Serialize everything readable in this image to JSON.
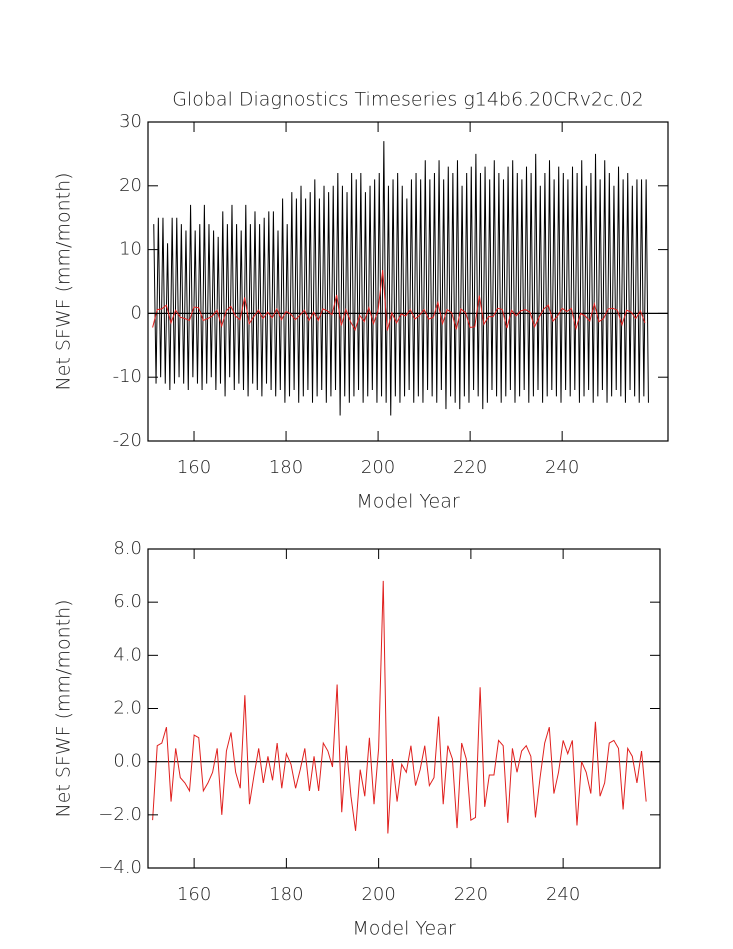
{
  "chart_data": [
    {
      "type": "line",
      "title": "Global Diagnostics Timeseries g14b6.20CRv2c.02",
      "x_label": "Model Year",
      "y_label": "Net SFWF (mm/month)",
      "xlim": [
        150,
        263
      ],
      "xticks": [
        160,
        180,
        200,
        220,
        240
      ],
      "ylim": [
        -20,
        30
      ],
      "yticks": [
        -20,
        -10,
        0,
        10,
        20,
        30
      ],
      "zero_line": true,
      "x": [
        151,
        152,
        153,
        154,
        155,
        156,
        157,
        158,
        159,
        160,
        161,
        162,
        163,
        164,
        165,
        166,
        167,
        168,
        169,
        170,
        171,
        172,
        173,
        174,
        175,
        176,
        177,
        178,
        179,
        180,
        181,
        182,
        183,
        184,
        185,
        186,
        187,
        188,
        189,
        190,
        191,
        192,
        193,
        194,
        195,
        196,
        197,
        198,
        199,
        200,
        201,
        202,
        203,
        204,
        205,
        206,
        207,
        208,
        209,
        210,
        211,
        212,
        213,
        214,
        215,
        216,
        217,
        218,
        219,
        220,
        221,
        222,
        223,
        224,
        225,
        226,
        227,
        228,
        229,
        230,
        231,
        232,
        233,
        234,
        235,
        236,
        237,
        238,
        239,
        240,
        241,
        242,
        243,
        244,
        245,
        246,
        247,
        248,
        249,
        250,
        251,
        252,
        253,
        254,
        255,
        256,
        257,
        258
      ],
      "series": [
        {
          "color": "#000000",
          "x": [
            151.25,
            151.75,
            152.25,
            152.75,
            153.25,
            153.75,
            154.25,
            154.75,
            155.25,
            155.75,
            156.25,
            156.75,
            157.25,
            157.75,
            158.25,
            158.75,
            159.25,
            159.75,
            160.25,
            160.75,
            161.25,
            161.75,
            162.25,
            162.75,
            163.25,
            163.75,
            164.25,
            164.75,
            165.25,
            165.75,
            166.25,
            166.75,
            167.25,
            167.75,
            168.25,
            168.75,
            169.25,
            169.75,
            170.25,
            170.75,
            171.25,
            171.75,
            172.25,
            172.75,
            173.25,
            173.75,
            174.25,
            174.75,
            175.25,
            175.75,
            176.25,
            176.75,
            177.25,
            177.75,
            178.25,
            178.75,
            179.25,
            179.75,
            180.25,
            180.75,
            181.25,
            181.75,
            182.25,
            182.75,
            183.25,
            183.75,
            184.25,
            184.75,
            185.25,
            185.75,
            186.25,
            186.75,
            187.25,
            187.75,
            188.25,
            188.75,
            189.25,
            189.75,
            190.25,
            190.75,
            191.25,
            191.75,
            192.25,
            192.75,
            193.25,
            193.75,
            194.25,
            194.75,
            195.25,
            195.75,
            196.25,
            196.75,
            197.25,
            197.75,
            198.25,
            198.75,
            199.25,
            199.75,
            200.25,
            200.75,
            201.25,
            201.75,
            202.25,
            202.75,
            203.25,
            203.75,
            204.25,
            204.75,
            205.25,
            205.75,
            206.25,
            206.75,
            207.25,
            207.75,
            208.25,
            208.75,
            209.25,
            209.75,
            210.25,
            210.75,
            211.25,
            211.75,
            212.25,
            212.75,
            213.25,
            213.75,
            214.25,
            214.75,
            215.25,
            215.75,
            216.25,
            216.75,
            217.25,
            217.75,
            218.25,
            218.75,
            219.25,
            219.75,
            220.25,
            220.75,
            221.25,
            221.75,
            222.25,
            222.75,
            223.25,
            223.75,
            224.25,
            224.75,
            225.25,
            225.75,
            226.25,
            226.75,
            227.25,
            227.75,
            228.25,
            228.75,
            229.25,
            229.75,
            230.25,
            230.75,
            231.25,
            231.75,
            232.25,
            232.75,
            233.25,
            233.75,
            234.25,
            234.75,
            235.25,
            235.75,
            236.25,
            236.75,
            237.25,
            237.75,
            238.25,
            238.75,
            239.25,
            239.75,
            240.25,
            240.75,
            241.25,
            241.75,
            242.25,
            242.75,
            243.25,
            243.75,
            244.25,
            244.75,
            245.25,
            245.75,
            246.25,
            246.75,
            247.25,
            247.75,
            248.25,
            248.75,
            249.25,
            249.75,
            250.25,
            250.75,
            251.25,
            251.75,
            252.25,
            252.75,
            253.25,
            253.75,
            254.25,
            254.75,
            255.25,
            255.75,
            256.25,
            256.75,
            257.25,
            257.75,
            258.25,
            258.75
          ],
          "values": [
            14,
            -11,
            15,
            -10,
            15,
            -11,
            11,
            -12,
            15,
            -11,
            15,
            -10,
            14,
            -11,
            13,
            -12,
            17,
            -10,
            13,
            -11,
            14,
            -12,
            17,
            -11,
            14,
            -10,
            13,
            -12,
            12,
            -11,
            16,
            -13,
            14,
            -10,
            17,
            -12,
            14,
            -11,
            13,
            -12,
            17,
            -13,
            14,
            -11,
            16,
            -12,
            14,
            -13,
            15,
            -11,
            16,
            -12,
            16,
            -13,
            13,
            -12,
            18,
            -14,
            14,
            -13,
            19,
            -12,
            18,
            -14,
            20,
            -13,
            18,
            -12,
            19,
            -14,
            21,
            -13,
            18,
            -12,
            20,
            -14,
            19,
            -13,
            20,
            -12,
            22,
            -16,
            20,
            -13,
            19,
            -14,
            22,
            -13,
            21,
            -12,
            22,
            -14,
            19,
            -13,
            20,
            -12,
            21,
            -14,
            22,
            -13,
            27,
            -14,
            20,
            -16,
            21,
            -13,
            22,
            -14,
            20,
            -13,
            18,
            -12,
            21,
            -14,
            22,
            -13,
            21,
            -14,
            24,
            -12,
            21,
            -13,
            22,
            -14,
            24,
            -12,
            21,
            -15,
            23,
            -13,
            22,
            -14,
            24,
            -15,
            20,
            -13,
            22,
            -14,
            23,
            -12,
            25,
            -13,
            22,
            -15,
            23,
            -14,
            21,
            -12,
            24,
            -13,
            22,
            -14,
            21,
            -13,
            23,
            -12,
            24,
            -14,
            22,
            -13,
            21,
            -12,
            23,
            -14,
            22,
            -13,
            25,
            -12,
            20,
            -14,
            22,
            -13,
            24,
            -12,
            21,
            -13,
            23,
            -14,
            22,
            -12,
            21,
            -13,
            23,
            -12,
            22,
            -14,
            24,
            -13,
            20,
            -12,
            22,
            -14,
            25,
            -13,
            21,
            -12,
            24,
            -14,
            22,
            -13,
            20,
            -12,
            23,
            -13,
            21,
            -14,
            22,
            -12,
            20,
            -13,
            21,
            -14,
            21,
            -13,
            21,
            -14
          ]
        },
        {
          "color": "#e0201e",
          "values": [
            -2.2,
            0.6,
            0.7,
            1.3,
            -1.5,
            0.5,
            -0.6,
            -0.8,
            -1.1,
            1.0,
            0.9,
            -1.1,
            -0.8,
            -0.4,
            0.5,
            -2.0,
            0.4,
            1.1,
            -0.4,
            -1.0,
            2.5,
            -1.6,
            -0.5,
            0.5,
            -0.8,
            0.2,
            -0.7,
            0.7,
            -1.0,
            0.3,
            -0.1,
            -1.0,
            -0.3,
            0.5,
            -1.1,
            0.2,
            -1.1,
            0.7,
            0.4,
            -0.2,
            2.9,
            -1.9,
            0.6,
            -1.3,
            -2.6,
            -0.3,
            -1.3,
            0.9,
            -1.6,
            0.5,
            6.8,
            -2.7,
            0.1,
            -1.5,
            -0.1,
            -0.4,
            0.6,
            -0.9,
            -0.3,
            0.6,
            -0.9,
            -0.6,
            1.7,
            -1.6,
            0.6,
            0.1,
            -2.5,
            0.7,
            0.1,
            -2.2,
            -2.1,
            2.8,
            -1.7,
            -0.5,
            -0.5,
            0.8,
            0.6,
            -2.3,
            0.5,
            -0.4,
            0.4,
            0.6,
            0.2,
            -2.1,
            -0.6,
            0.7,
            1.3,
            -1.2,
            -0.4,
            0.8,
            0.3,
            0.8,
            -2.4,
            0.0,
            -0.4,
            -1.2,
            1.5,
            -1.3,
            -0.8,
            0.7,
            0.8,
            0.5,
            -1.8,
            0.5,
            0.2,
            -0.8,
            0.4,
            -1.5
          ]
        }
      ]
    },
    {
      "type": "line",
      "x_label": "Model Year",
      "y_label": "Net SFWF (mm/month)",
      "xlim": [
        150,
        261
      ],
      "xticks": [
        160,
        180,
        200,
        220,
        240
      ],
      "ylim": [
        -4,
        8
      ],
      "yticks": [
        {
          "value": -4,
          "label": "−4.0"
        },
        {
          "value": -2,
          "label": "−2.0"
        },
        {
          "value": 0,
          "label": "0.0"
        },
        {
          "value": 2,
          "label": "2.0"
        },
        {
          "value": 4,
          "label": "4.0"
        },
        {
          "value": 6,
          "label": "6.0"
        },
        {
          "value": 8,
          "label": "8.0"
        }
      ],
      "zero_line": true,
      "x": [
        151,
        152,
        153,
        154,
        155,
        156,
        157,
        158,
        159,
        160,
        161,
        162,
        163,
        164,
        165,
        166,
        167,
        168,
        169,
        170,
        171,
        172,
        173,
        174,
        175,
        176,
        177,
        178,
        179,
        180,
        181,
        182,
        183,
        184,
        185,
        186,
        187,
        188,
        189,
        190,
        191,
        192,
        193,
        194,
        195,
        196,
        197,
        198,
        199,
        200,
        201,
        202,
        203,
        204,
        205,
        206,
        207,
        208,
        209,
        210,
        211,
        212,
        213,
        214,
        215,
        216,
        217,
        218,
        219,
        220,
        221,
        222,
        223,
        224,
        225,
        226,
        227,
        228,
        229,
        230,
        231,
        232,
        233,
        234,
        235,
        236,
        237,
        238,
        239,
        240,
        241,
        242,
        243,
        244,
        245,
        246,
        247,
        248,
        249,
        250,
        251,
        252,
        253,
        254,
        255,
        256,
        257,
        258
      ],
      "series": [
        {
          "color": "#e0201e",
          "values": [
            -2.2,
            0.6,
            0.7,
            1.3,
            -1.5,
            0.5,
            -0.6,
            -0.8,
            -1.1,
            1.0,
            0.9,
            -1.1,
            -0.8,
            -0.4,
            0.5,
            -2.0,
            0.4,
            1.1,
            -0.4,
            -1.0,
            2.5,
            -1.6,
            -0.5,
            0.5,
            -0.8,
            0.2,
            -0.7,
            0.7,
            -1.0,
            0.3,
            -0.1,
            -1.0,
            -0.3,
            0.5,
            -1.1,
            0.2,
            -1.1,
            0.7,
            0.4,
            -0.2,
            2.9,
            -1.9,
            0.6,
            -1.3,
            -2.6,
            -0.3,
            -1.3,
            0.9,
            -1.6,
            0.5,
            6.8,
            -2.7,
            0.1,
            -1.5,
            -0.1,
            -0.4,
            0.6,
            -0.9,
            -0.3,
            0.6,
            -0.9,
            -0.6,
            1.7,
            -1.6,
            0.6,
            0.1,
            -2.5,
            0.7,
            0.1,
            -2.2,
            -2.1,
            2.8,
            -1.7,
            -0.5,
            -0.5,
            0.8,
            0.6,
            -2.3,
            0.5,
            -0.4,
            0.4,
            0.6,
            0.2,
            -2.1,
            -0.6,
            0.7,
            1.3,
            -1.2,
            -0.4,
            0.8,
            0.3,
            0.8,
            -2.4,
            0.0,
            -0.4,
            -1.2,
            1.5,
            -1.3,
            -0.8,
            0.7,
            0.8,
            0.5,
            -1.8,
            0.5,
            0.2,
            -0.8,
            0.4,
            -1.5
          ]
        }
      ]
    }
  ]
}
